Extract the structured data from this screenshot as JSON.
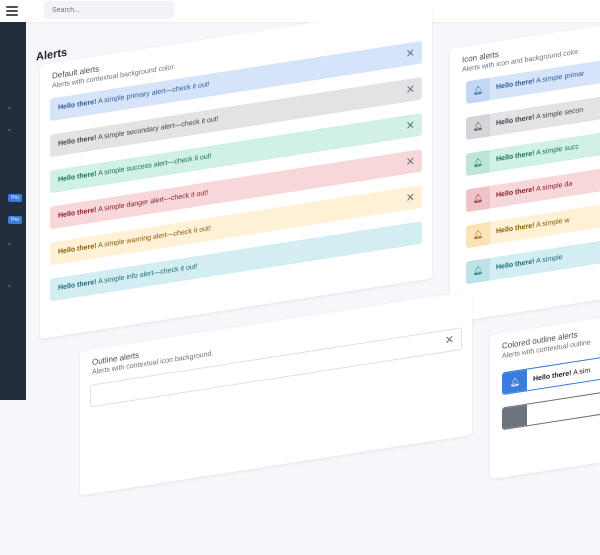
{
  "topbar": {
    "search_placeholder": "Search..."
  },
  "sidebar": {
    "badges": [
      "Pro",
      "Pro"
    ]
  },
  "page": {
    "title": "Alerts"
  },
  "default_alerts": {
    "title": "Default alerts",
    "subtitle": "Alerts with contextual background color.",
    "items": [
      {
        "strong": "Hello there!",
        "text": " A simple primary alert—check it out!"
      },
      {
        "strong": "Hello there!",
        "text": " A simple secondary alert—check it out!"
      },
      {
        "strong": "Hello there!",
        "text": " A simple success alert—check it out!"
      },
      {
        "strong": "Hello there!",
        "text": " A simple danger alert—check it out!"
      },
      {
        "strong": "Hello there!",
        "text": " A simple warning alert—check it out!"
      },
      {
        "strong": "Hello there!",
        "text": " A simple info alert—check it out!"
      }
    ]
  },
  "icon_alerts": {
    "title": "Icon alerts",
    "subtitle": "Alerts with icon and background color.",
    "items": [
      {
        "strong": "Hello there!",
        "text": " A simple primar"
      },
      {
        "strong": "Hello there!",
        "text": " A simple secon"
      },
      {
        "strong": "Hello there!",
        "text": " A simple succ"
      },
      {
        "strong": "Hello there!",
        "text": " A simple da"
      },
      {
        "strong": "Hello there!",
        "text": " A simple w"
      },
      {
        "strong": "Hello there!",
        "text": " A simple"
      }
    ]
  },
  "outline_alerts": {
    "title": "Outline alerts",
    "subtitle": "Alerts with contextual icon background."
  },
  "colored_outline_alerts": {
    "title": "Colored outline alerts",
    "subtitle": "Alerts with contextual outline",
    "items": [
      {
        "strong": "Hello there!",
        "text": " A sim"
      }
    ]
  },
  "colors": {
    "sidebar_bg": "#222e3c",
    "primary_bg": "#d6e4f9",
    "primary_text": "#2f5d9b",
    "secondary_bg": "#e2e3e5",
    "secondary_text": "#41464b",
    "success_bg": "#d1f0e6",
    "success_text": "#177358",
    "danger_bg": "#f8d7da",
    "danger_text": "#842029",
    "warning_bg": "#fff1d6",
    "warning_text": "#8a5b00",
    "info_bg": "#d3eef2",
    "info_text": "#1b6b77",
    "accent": "#3b7ddd"
  },
  "icons": {
    "close": "close-icon",
    "bell": "bell-icon",
    "menu": "menu-icon",
    "search": "search-icon"
  }
}
